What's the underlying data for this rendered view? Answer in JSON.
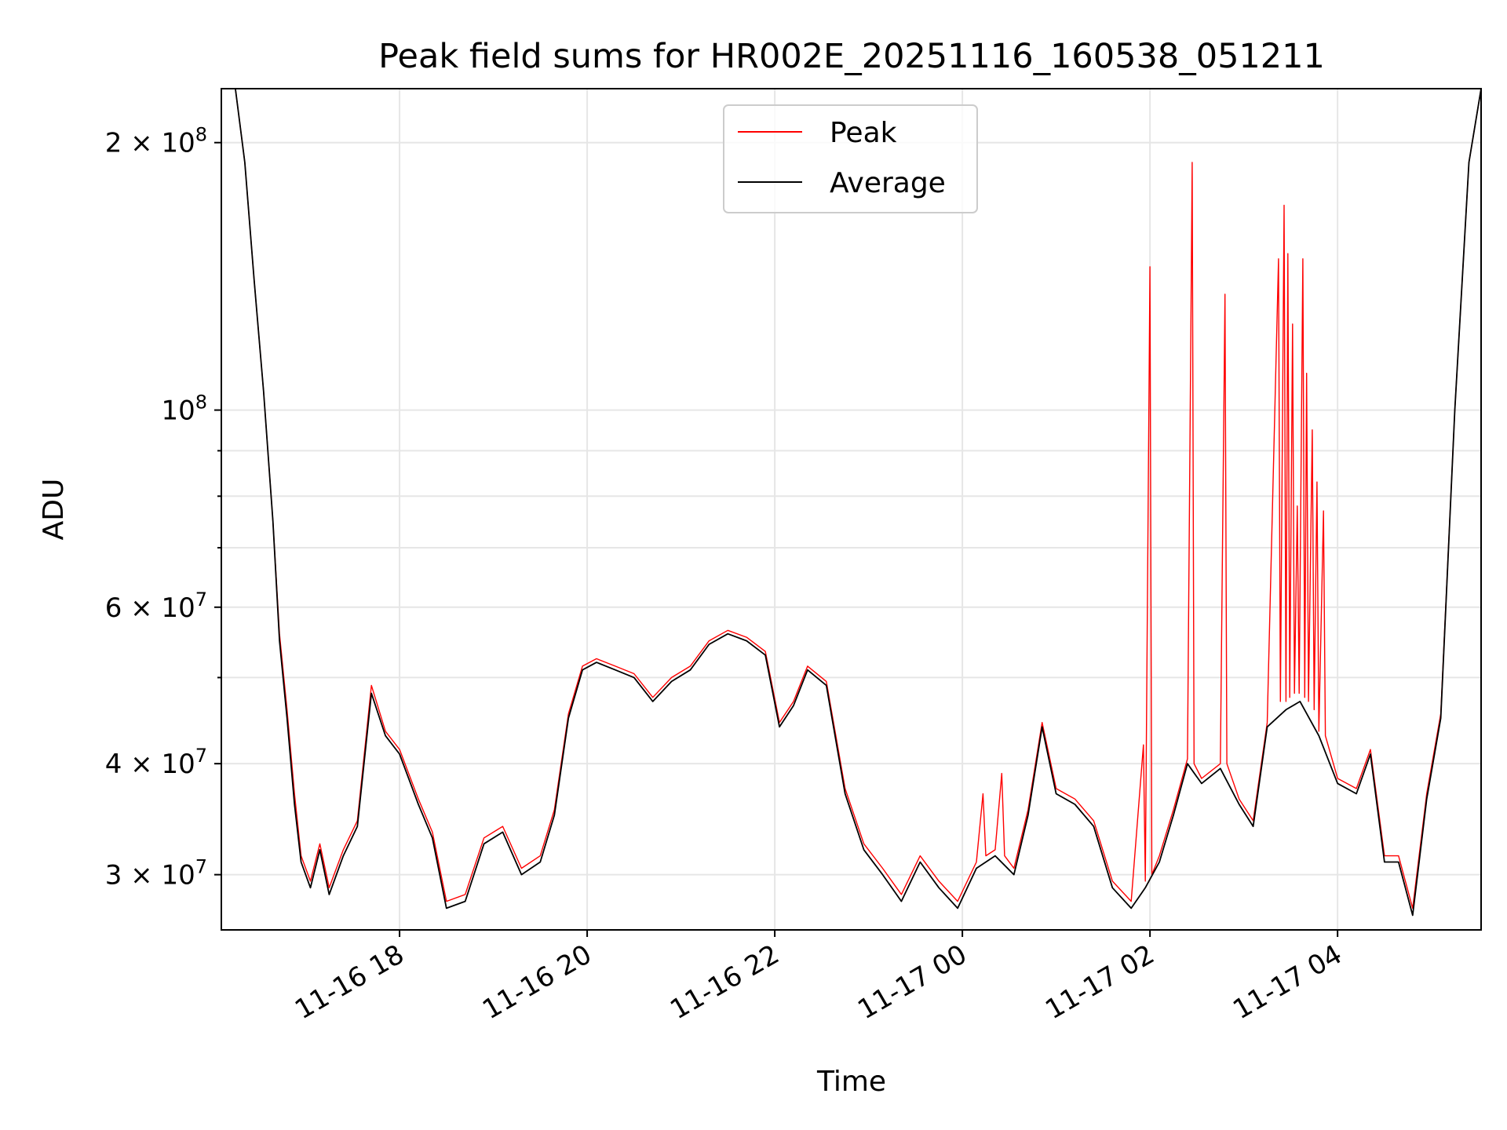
{
  "chart_data": {
    "type": "line",
    "title": "Peak field sums for HR002E_20251116_160538_051211",
    "xlabel": "Time",
    "ylabel": "ADU",
    "yscale": "log",
    "grid": true,
    "legend_position": "upper-center",
    "x_unit": "hours since 2025-11-16 00:00",
    "xlim": [
      16.1,
      29.53
    ],
    "ylim": [
      26000000,
      230000000
    ],
    "x_ticks": [
      {
        "value": 18,
        "label": "11-16 18"
      },
      {
        "value": 20,
        "label": "11-16 20"
      },
      {
        "value": 22,
        "label": "11-16 22"
      },
      {
        "value": 24,
        "label": "11-17 00"
      },
      {
        "value": 26,
        "label": "11-17 02"
      },
      {
        "value": 28,
        "label": "11-17 04"
      }
    ],
    "y_ticks": [
      {
        "value": 30000000,
        "base": "3 × 10",
        "exp": "7"
      },
      {
        "value": 40000000,
        "base": "4 × 10",
        "exp": "7"
      },
      {
        "value": 60000000,
        "base": "6 × 10",
        "exp": "7"
      },
      {
        "value": 100000000,
        "base": "10",
        "exp": "8"
      },
      {
        "value": 200000000,
        "base": "2 × 10",
        "exp": "8"
      }
    ],
    "y_minor_ticks": [
      50000000,
      70000000,
      80000000,
      90000000
    ],
    "series": [
      {
        "name": "Average",
        "color": "#000000",
        "points": [
          [
            16.25,
            230000000
          ],
          [
            16.35,
            190000000
          ],
          [
            16.45,
            140000000
          ],
          [
            16.55,
            105000000
          ],
          [
            16.65,
            75000000
          ],
          [
            16.72,
            55000000
          ],
          [
            16.8,
            45000000
          ],
          [
            16.88,
            36000000
          ],
          [
            16.95,
            31000000
          ],
          [
            17.05,
            29000000
          ],
          [
            17.15,
            32000000
          ],
          [
            17.25,
            28500000
          ],
          [
            17.4,
            31500000
          ],
          [
            17.55,
            34000000
          ],
          [
            17.7,
            48000000
          ],
          [
            17.85,
            43000000
          ],
          [
            18.0,
            41000000
          ],
          [
            18.2,
            36000000
          ],
          [
            18.35,
            33000000
          ],
          [
            18.5,
            27500000
          ],
          [
            18.7,
            28000000
          ],
          [
            18.9,
            32500000
          ],
          [
            19.1,
            33500000
          ],
          [
            19.3,
            30000000
          ],
          [
            19.5,
            31000000
          ],
          [
            19.65,
            35000000
          ],
          [
            19.8,
            45000000
          ],
          [
            19.95,
            51000000
          ],
          [
            20.1,
            52000000
          ],
          [
            20.3,
            51000000
          ],
          [
            20.5,
            50000000
          ],
          [
            20.7,
            47000000
          ],
          [
            20.9,
            49500000
          ],
          [
            21.1,
            51000000
          ],
          [
            21.3,
            54500000
          ],
          [
            21.5,
            56000000
          ],
          [
            21.7,
            55000000
          ],
          [
            21.9,
            53000000
          ],
          [
            22.05,
            44000000
          ],
          [
            22.2,
            46500000
          ],
          [
            22.35,
            51000000
          ],
          [
            22.55,
            49000000
          ],
          [
            22.75,
            37000000
          ],
          [
            22.95,
            32000000
          ],
          [
            23.15,
            30000000
          ],
          [
            23.35,
            28000000
          ],
          [
            23.55,
            31000000
          ],
          [
            23.75,
            29000000
          ],
          [
            23.95,
            27500000
          ],
          [
            24.15,
            30500000
          ],
          [
            24.35,
            31500000
          ],
          [
            24.55,
            30000000
          ],
          [
            24.7,
            35000000
          ],
          [
            24.85,
            44000000
          ],
          [
            25.0,
            37000000
          ],
          [
            25.2,
            36000000
          ],
          [
            25.4,
            34000000
          ],
          [
            25.6,
            29000000
          ],
          [
            25.8,
            27500000
          ],
          [
            25.95,
            29000000
          ],
          [
            26.1,
            31000000
          ],
          [
            26.25,
            35000000
          ],
          [
            26.4,
            40000000
          ],
          [
            26.55,
            38000000
          ],
          [
            26.75,
            39500000
          ],
          [
            26.95,
            36000000
          ],
          [
            27.1,
            34000000
          ],
          [
            27.25,
            44000000
          ],
          [
            27.45,
            46000000
          ],
          [
            27.6,
            47000000
          ],
          [
            27.8,
            43000000
          ],
          [
            28.0,
            38000000
          ],
          [
            28.2,
            37000000
          ],
          [
            28.35,
            41000000
          ],
          [
            28.5,
            31000000
          ],
          [
            28.65,
            31000000
          ],
          [
            28.8,
            27000000
          ],
          [
            28.95,
            36500000
          ],
          [
            29.1,
            45000000
          ],
          [
            29.25,
            100000000
          ],
          [
            29.4,
            190000000
          ],
          [
            29.53,
            230000000
          ]
        ]
      },
      {
        "name": "Peak",
        "color": "#ff0000",
        "points": [
          [
            16.25,
            230000000
          ],
          [
            16.35,
            190000000
          ],
          [
            16.45,
            140000000
          ],
          [
            16.55,
            105000000
          ],
          [
            16.65,
            75000000
          ],
          [
            16.72,
            56000000
          ],
          [
            16.8,
            46000000
          ],
          [
            16.88,
            37000000
          ],
          [
            16.95,
            31500000
          ],
          [
            17.05,
            29500000
          ],
          [
            17.15,
            32500000
          ],
          [
            17.25,
            29000000
          ],
          [
            17.4,
            32000000
          ],
          [
            17.55,
            34500000
          ],
          [
            17.7,
            49000000
          ],
          [
            17.85,
            43500000
          ],
          [
            18.0,
            41500000
          ],
          [
            18.2,
            36500000
          ],
          [
            18.35,
            33500000
          ],
          [
            18.5,
            28000000
          ],
          [
            18.7,
            28500000
          ],
          [
            18.9,
            33000000
          ],
          [
            19.1,
            34000000
          ],
          [
            19.3,
            30500000
          ],
          [
            19.5,
            31500000
          ],
          [
            19.65,
            35500000
          ],
          [
            19.8,
            45500000
          ],
          [
            19.95,
            51500000
          ],
          [
            20.1,
            52500000
          ],
          [
            20.3,
            51500000
          ],
          [
            20.5,
            50500000
          ],
          [
            20.7,
            47500000
          ],
          [
            20.9,
            50000000
          ],
          [
            21.1,
            51500000
          ],
          [
            21.3,
            55000000
          ],
          [
            21.5,
            56500000
          ],
          [
            21.7,
            55500000
          ],
          [
            21.9,
            53500000
          ],
          [
            22.05,
            44500000
          ],
          [
            22.2,
            47000000
          ],
          [
            22.35,
            51500000
          ],
          [
            22.55,
            49500000
          ],
          [
            22.75,
            37500000
          ],
          [
            22.95,
            32500000
          ],
          [
            23.15,
            30500000
          ],
          [
            23.35,
            28500000
          ],
          [
            23.55,
            31500000
          ],
          [
            23.75,
            29500000
          ],
          [
            23.95,
            28000000
          ],
          [
            24.15,
            31000000
          ],
          [
            24.22,
            37000000
          ],
          [
            24.25,
            31500000
          ],
          [
            24.35,
            32000000
          ],
          [
            24.42,
            39000000
          ],
          [
            24.45,
            31500000
          ],
          [
            24.55,
            30500000
          ],
          [
            24.7,
            35500000
          ],
          [
            24.85,
            44500000
          ],
          [
            25.0,
            37500000
          ],
          [
            25.2,
            36500000
          ],
          [
            25.4,
            34500000
          ],
          [
            25.6,
            29500000
          ],
          [
            25.8,
            28000000
          ],
          [
            25.93,
            42000000
          ],
          [
            25.95,
            29500000
          ],
          [
            26.0,
            145000000
          ],
          [
            26.02,
            30000000
          ],
          [
            26.1,
            31500000
          ],
          [
            26.25,
            35500000
          ],
          [
            26.4,
            40500000
          ],
          [
            26.45,
            190000000
          ],
          [
            26.47,
            40000000
          ],
          [
            26.55,
            38500000
          ],
          [
            26.75,
            40000000
          ],
          [
            26.8,
            135000000
          ],
          [
            26.82,
            40000000
          ],
          [
            26.95,
            36500000
          ],
          [
            27.1,
            34500000
          ],
          [
            27.25,
            44500000
          ],
          [
            27.37,
            148000000
          ],
          [
            27.39,
            47000000
          ],
          [
            27.43,
            170000000
          ],
          [
            27.45,
            47000000
          ],
          [
            27.47,
            150000000
          ],
          [
            27.49,
            47500000
          ],
          [
            27.52,
            125000000
          ],
          [
            27.54,
            48000000
          ],
          [
            27.57,
            78000000
          ],
          [
            27.59,
            48000000
          ],
          [
            27.63,
            148000000
          ],
          [
            27.65,
            47500000
          ],
          [
            27.67,
            110000000
          ],
          [
            27.69,
            47000000
          ],
          [
            27.73,
            95000000
          ],
          [
            27.75,
            46000000
          ],
          [
            27.78,
            83000000
          ],
          [
            27.8,
            43500000
          ],
          [
            27.85,
            77000000
          ],
          [
            27.87,
            43000000
          ],
          [
            28.0,
            38500000
          ],
          [
            28.2,
            37500000
          ],
          [
            28.35,
            41500000
          ],
          [
            28.5,
            31500000
          ],
          [
            28.65,
            31500000
          ],
          [
            28.8,
            27500000
          ],
          [
            28.95,
            37000000
          ],
          [
            29.1,
            45500000
          ],
          [
            29.25,
            100000000
          ],
          [
            29.4,
            190000000
          ],
          [
            29.53,
            230000000
          ]
        ]
      }
    ]
  }
}
